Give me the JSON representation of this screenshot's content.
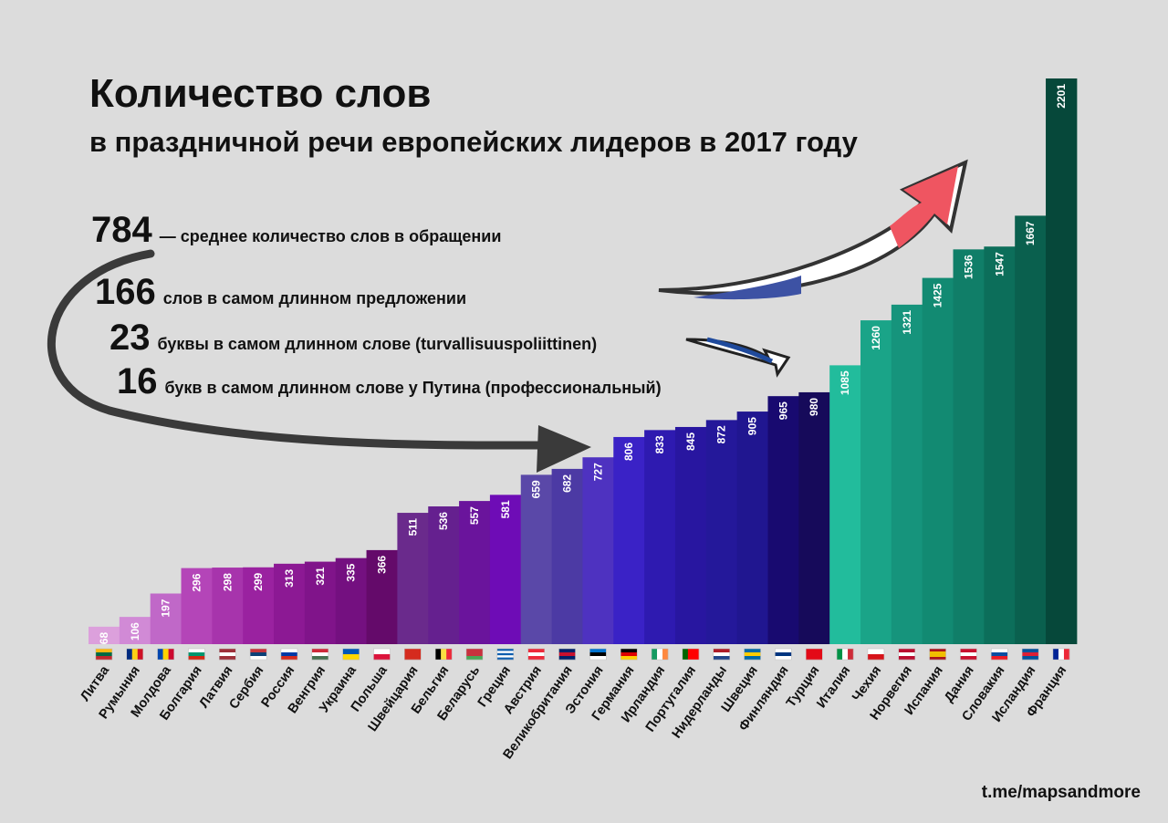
{
  "header": {
    "title": "Количество слов",
    "subtitle": "в праздничной речи европейских лидеров в 2017 году"
  },
  "facts": [
    {
      "num": "784",
      "text": "— среднее количество слов в обращении"
    },
    {
      "num": "166",
      "text": "слов в самом длинном предложении"
    },
    {
      "num": "23",
      "text": "буквы в самом длинном слове (turvallisuuspoliittinen)"
    },
    {
      "num": "16",
      "text": "букв в самом длинном слове у Путина (профессиональный)"
    }
  ],
  "credit": "t.me/mapsandmore",
  "chart_data": {
    "type": "bar",
    "categories": [
      "Литва",
      "Румыния",
      "Молдова",
      "Болгария",
      "Латвия",
      "Сербия",
      "Россия",
      "Венгрия",
      "Украина",
      "Польша",
      "Швейцария",
      "Бельгия",
      "Беларусь",
      "Греция",
      "Австрия",
      "Великобритания",
      "Эстония",
      "Германия",
      "Ирландия",
      "Португалия",
      "Нидерланды",
      "Швеция",
      "Финляндия",
      "Турция",
      "Италия",
      "Чехия",
      "Норвегия",
      "Испания",
      "Дания",
      "Словакия",
      "Исландия",
      "Франция"
    ],
    "values": [
      68,
      106,
      197,
      296,
      298,
      299,
      313,
      321,
      335,
      366,
      511,
      536,
      557,
      581,
      659,
      682,
      727,
      806,
      833,
      845,
      872,
      905,
      965,
      980,
      1085,
      1260,
      1321,
      1425,
      1536,
      1547,
      1667,
      2201
    ],
    "ylim": [
      0,
      2201
    ],
    "bar_colors": [
      "#dca0dc",
      "#d18ad6",
      "#c068c8",
      "#b445b8",
      "#a734ac",
      "#9a22a0",
      "#8c1994",
      "#80148a",
      "#741080",
      "#640a6a",
      "#6a2a8c",
      "#65208f",
      "#6a149c",
      "#6e0cb6",
      "#5a48a8",
      "#4c3aa4",
      "#4e32c0",
      "#3a22c6",
      "#2e1ab0",
      "#2816a0",
      "#24189a",
      "#201690",
      "#180a70",
      "#160a5a",
      "#22bc9c",
      "#1aa488",
      "#16947c",
      "#128a72",
      "#107e68",
      "#0c6e5a",
      "#0a604e",
      "#06483a"
    ],
    "flags": [
      {
        "stripes": "h",
        "colors": [
          "#fdb913",
          "#006a44",
          "#c1272d"
        ]
      },
      {
        "stripes": "v",
        "colors": [
          "#002b7f",
          "#fcd116",
          "#ce1126"
        ]
      },
      {
        "stripes": "v",
        "colors": [
          "#0046ae",
          "#ffd200",
          "#cc092f"
        ]
      },
      {
        "stripes": "h",
        "colors": [
          "#ffffff",
          "#00966e",
          "#d62612"
        ]
      },
      {
        "stripes": "h",
        "colors": [
          "#9e3039",
          "#ffffff",
          "#9e3039"
        ]
      },
      {
        "stripes": "h",
        "colors": [
          "#c6363c",
          "#0c4076",
          "#ffffff"
        ]
      },
      {
        "stripes": "h",
        "colors": [
          "#ffffff",
          "#0039a6",
          "#d52b1e"
        ]
      },
      {
        "stripes": "h",
        "colors": [
          "#ce2939",
          "#ffffff",
          "#477050"
        ]
      },
      {
        "stripes": "h",
        "colors": [
          "#0057b7",
          "#ffd700"
        ]
      },
      {
        "stripes": "h",
        "colors": [
          "#ffffff",
          "#dc143c"
        ]
      },
      {
        "stripes": "h",
        "colors": [
          "#d52b1e"
        ]
      },
      {
        "stripes": "v",
        "colors": [
          "#000000",
          "#fae042",
          "#ed2939"
        ]
      },
      {
        "stripes": "h",
        "colors": [
          "#c8313e",
          "#c8313e",
          "#4aa657"
        ]
      },
      {
        "stripes": "h",
        "colors": [
          "#0d5eaf",
          "#ffffff",
          "#0d5eaf",
          "#ffffff",
          "#0d5eaf"
        ]
      },
      {
        "stripes": "h",
        "colors": [
          "#ed2939",
          "#ffffff",
          "#ed2939"
        ]
      },
      {
        "stripes": "h",
        "colors": [
          "#012169",
          "#c8102e",
          "#012169"
        ]
      },
      {
        "stripes": "h",
        "colors": [
          "#0072ce",
          "#000000",
          "#ffffff"
        ]
      },
      {
        "stripes": "h",
        "colors": [
          "#000000",
          "#dd0000",
          "#ffce00"
        ]
      },
      {
        "stripes": "v",
        "colors": [
          "#169b62",
          "#ffffff",
          "#ff883e"
        ]
      },
      {
        "stripes": "v",
        "colors": [
          "#006600",
          "#ff0000",
          "#ff0000"
        ]
      },
      {
        "stripes": "h",
        "colors": [
          "#ae1c28",
          "#ffffff",
          "#21468b"
        ]
      },
      {
        "stripes": "h",
        "colors": [
          "#006aa7",
          "#fecc00",
          "#006aa7"
        ]
      },
      {
        "stripes": "h",
        "colors": [
          "#ffffff",
          "#003580",
          "#ffffff"
        ]
      },
      {
        "stripes": "h",
        "colors": [
          "#e30a17"
        ]
      },
      {
        "stripes": "v",
        "colors": [
          "#009246",
          "#ffffff",
          "#ce2b37"
        ]
      },
      {
        "stripes": "h",
        "colors": [
          "#ffffff",
          "#d7141a"
        ]
      },
      {
        "stripes": "h",
        "colors": [
          "#ba0c2f",
          "#ffffff",
          "#ba0c2f"
        ]
      },
      {
        "stripes": "h",
        "colors": [
          "#aa151b",
          "#f1bf00",
          "#f1bf00",
          "#aa151b"
        ]
      },
      {
        "stripes": "h",
        "colors": [
          "#c8102e",
          "#ffffff",
          "#c8102e"
        ]
      },
      {
        "stripes": "h",
        "colors": [
          "#ffffff",
          "#0b4ea2",
          "#ee1c25"
        ]
      },
      {
        "stripes": "h",
        "colors": [
          "#02529c",
          "#dc1e35",
          "#02529c"
        ]
      },
      {
        "stripes": "v",
        "colors": [
          "#002395",
          "#ffffff",
          "#ed2939"
        ]
      }
    ]
  }
}
